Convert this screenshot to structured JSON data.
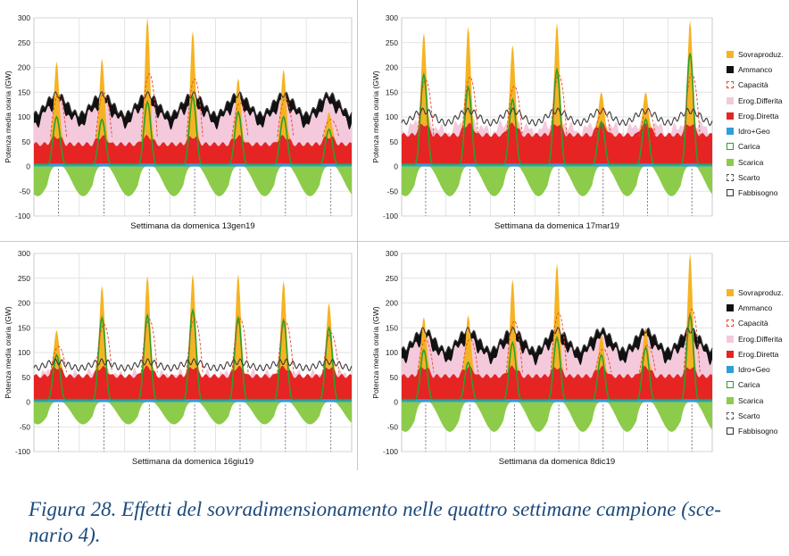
{
  "figure_caption": "Figura 28. Effetti del sovradimensionamento nelle quattro settimane campione (sce-\nnario 4).",
  "legend_items": [
    {
      "label": "Sovraproduz.",
      "color": "#f5b324",
      "style": "fill"
    },
    {
      "label": "Ammanco",
      "color": "#111111",
      "style": "fill"
    },
    {
      "label": "Capacità",
      "color": "#e8452a",
      "style": "dashed"
    },
    {
      "label": "Erog.Differita",
      "color": "#f4c9dc",
      "style": "fill"
    },
    {
      "label": "Erog.Diretta",
      "color": "#e62424",
      "style": "fill"
    },
    {
      "label": "Idro+Geo",
      "color": "#2e9fd8",
      "style": "fill"
    },
    {
      "label": "Carica",
      "color": "#2aa02a",
      "style": "outline"
    },
    {
      "label": "Scarica",
      "color": "#8dcb4a",
      "style": "fill"
    },
    {
      "label": "Scarto",
      "color": "#555555",
      "style": "dashed"
    },
    {
      "label": "Fabbisogno",
      "color": "#333333",
      "style": "outline"
    }
  ],
  "chart_data": [
    {
      "type": "area",
      "xlabel": "Settimana da domenica 13gen19",
      "ylabel": "Potenza media oraria (GW)",
      "ylim": [
        -100,
        300
      ],
      "yticks": [
        "300",
        "250",
        "200",
        "150",
        "100",
        "50",
        "0",
        "-50",
        "-100"
      ],
      "days": 7,
      "peaks": [
        212,
        218,
        300,
        274,
        178,
        196,
        110
      ],
      "demand": 125,
      "demand_amp": 25,
      "direct": 60,
      "discharge_min": -60,
      "charge_peaks": [
        100,
        95,
        130,
        140,
        110,
        100,
        75
      ]
    },
    {
      "type": "area",
      "xlabel": "Settimana da domenica 17mar19",
      "ylabel": "Potenza media oraria (GW)",
      "ylim": [
        -100,
        300
      ],
      "yticks": [
        "300",
        "250",
        "200",
        "150",
        "100",
        "50",
        "0",
        "-50",
        "-100"
      ],
      "days": 7,
      "peaks": [
        270,
        282,
        245,
        290,
        150,
        150,
        295
      ],
      "demand": 100,
      "demand_amp": 15,
      "direct": 85,
      "discharge_min": -60,
      "charge_peaks": [
        185,
        160,
        135,
        195,
        90,
        95,
        228
      ]
    },
    {
      "type": "area",
      "xlabel": "Settimana da domenica 16giu19",
      "ylabel": "Potenza media oraria (GW)",
      "ylim": [
        -100,
        300
      ],
      "yticks": [
        "300",
        "250",
        "200",
        "150",
        "100",
        "50",
        "0",
        "-50",
        "-100"
      ],
      "days": 7,
      "peaks": [
        145,
        235,
        255,
        258,
        258,
        245,
        200
      ],
      "demand": 75,
      "demand_amp": 8,
      "direct": 70,
      "discharge_min": -45,
      "charge_peaks": [
        95,
        170,
        175,
        185,
        170,
        165,
        150
      ]
    },
    {
      "type": "area",
      "xlabel": "Settimana da domenica 8dic19",
      "ylabel": "Potenza media oraria (GW)",
      "ylim": [
        -100,
        300
      ],
      "yticks": [
        "300",
        "250",
        "200",
        "150",
        "100",
        "50",
        "0",
        "-50",
        "-100"
      ],
      "days": 7,
      "peaks": [
        172,
        175,
        248,
        280,
        135,
        150,
        300
      ],
      "demand": 125,
      "demand_amp": 25,
      "direct": 70,
      "discharge_min": -60,
      "charge_peaks": [
        105,
        80,
        120,
        130,
        95,
        110,
        175
      ]
    }
  ]
}
